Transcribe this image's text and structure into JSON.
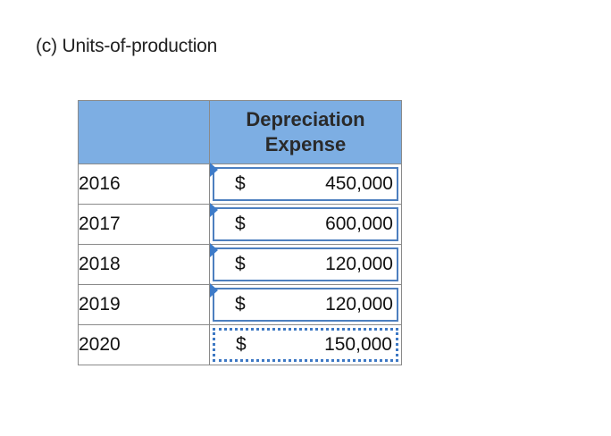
{
  "section_title": "(c) Units-of-production",
  "table": {
    "header": {
      "year_col": "",
      "value_col_line1": "Depreciation",
      "value_col_line2": "Expense"
    },
    "rows": [
      {
        "year": "2016",
        "currency": "$",
        "amount": "450,000"
      },
      {
        "year": "2017",
        "currency": "$",
        "amount": "600,000"
      },
      {
        "year": "2018",
        "currency": "$",
        "amount": "120,000"
      },
      {
        "year": "2019",
        "currency": "$",
        "amount": "120,000"
      },
      {
        "year": "2020",
        "currency": "$",
        "amount": "150,000"
      }
    ]
  },
  "colors": {
    "header_fill": "#7daee3",
    "field_border": "#4d7fbf",
    "marker": "#3d7bc9"
  }
}
